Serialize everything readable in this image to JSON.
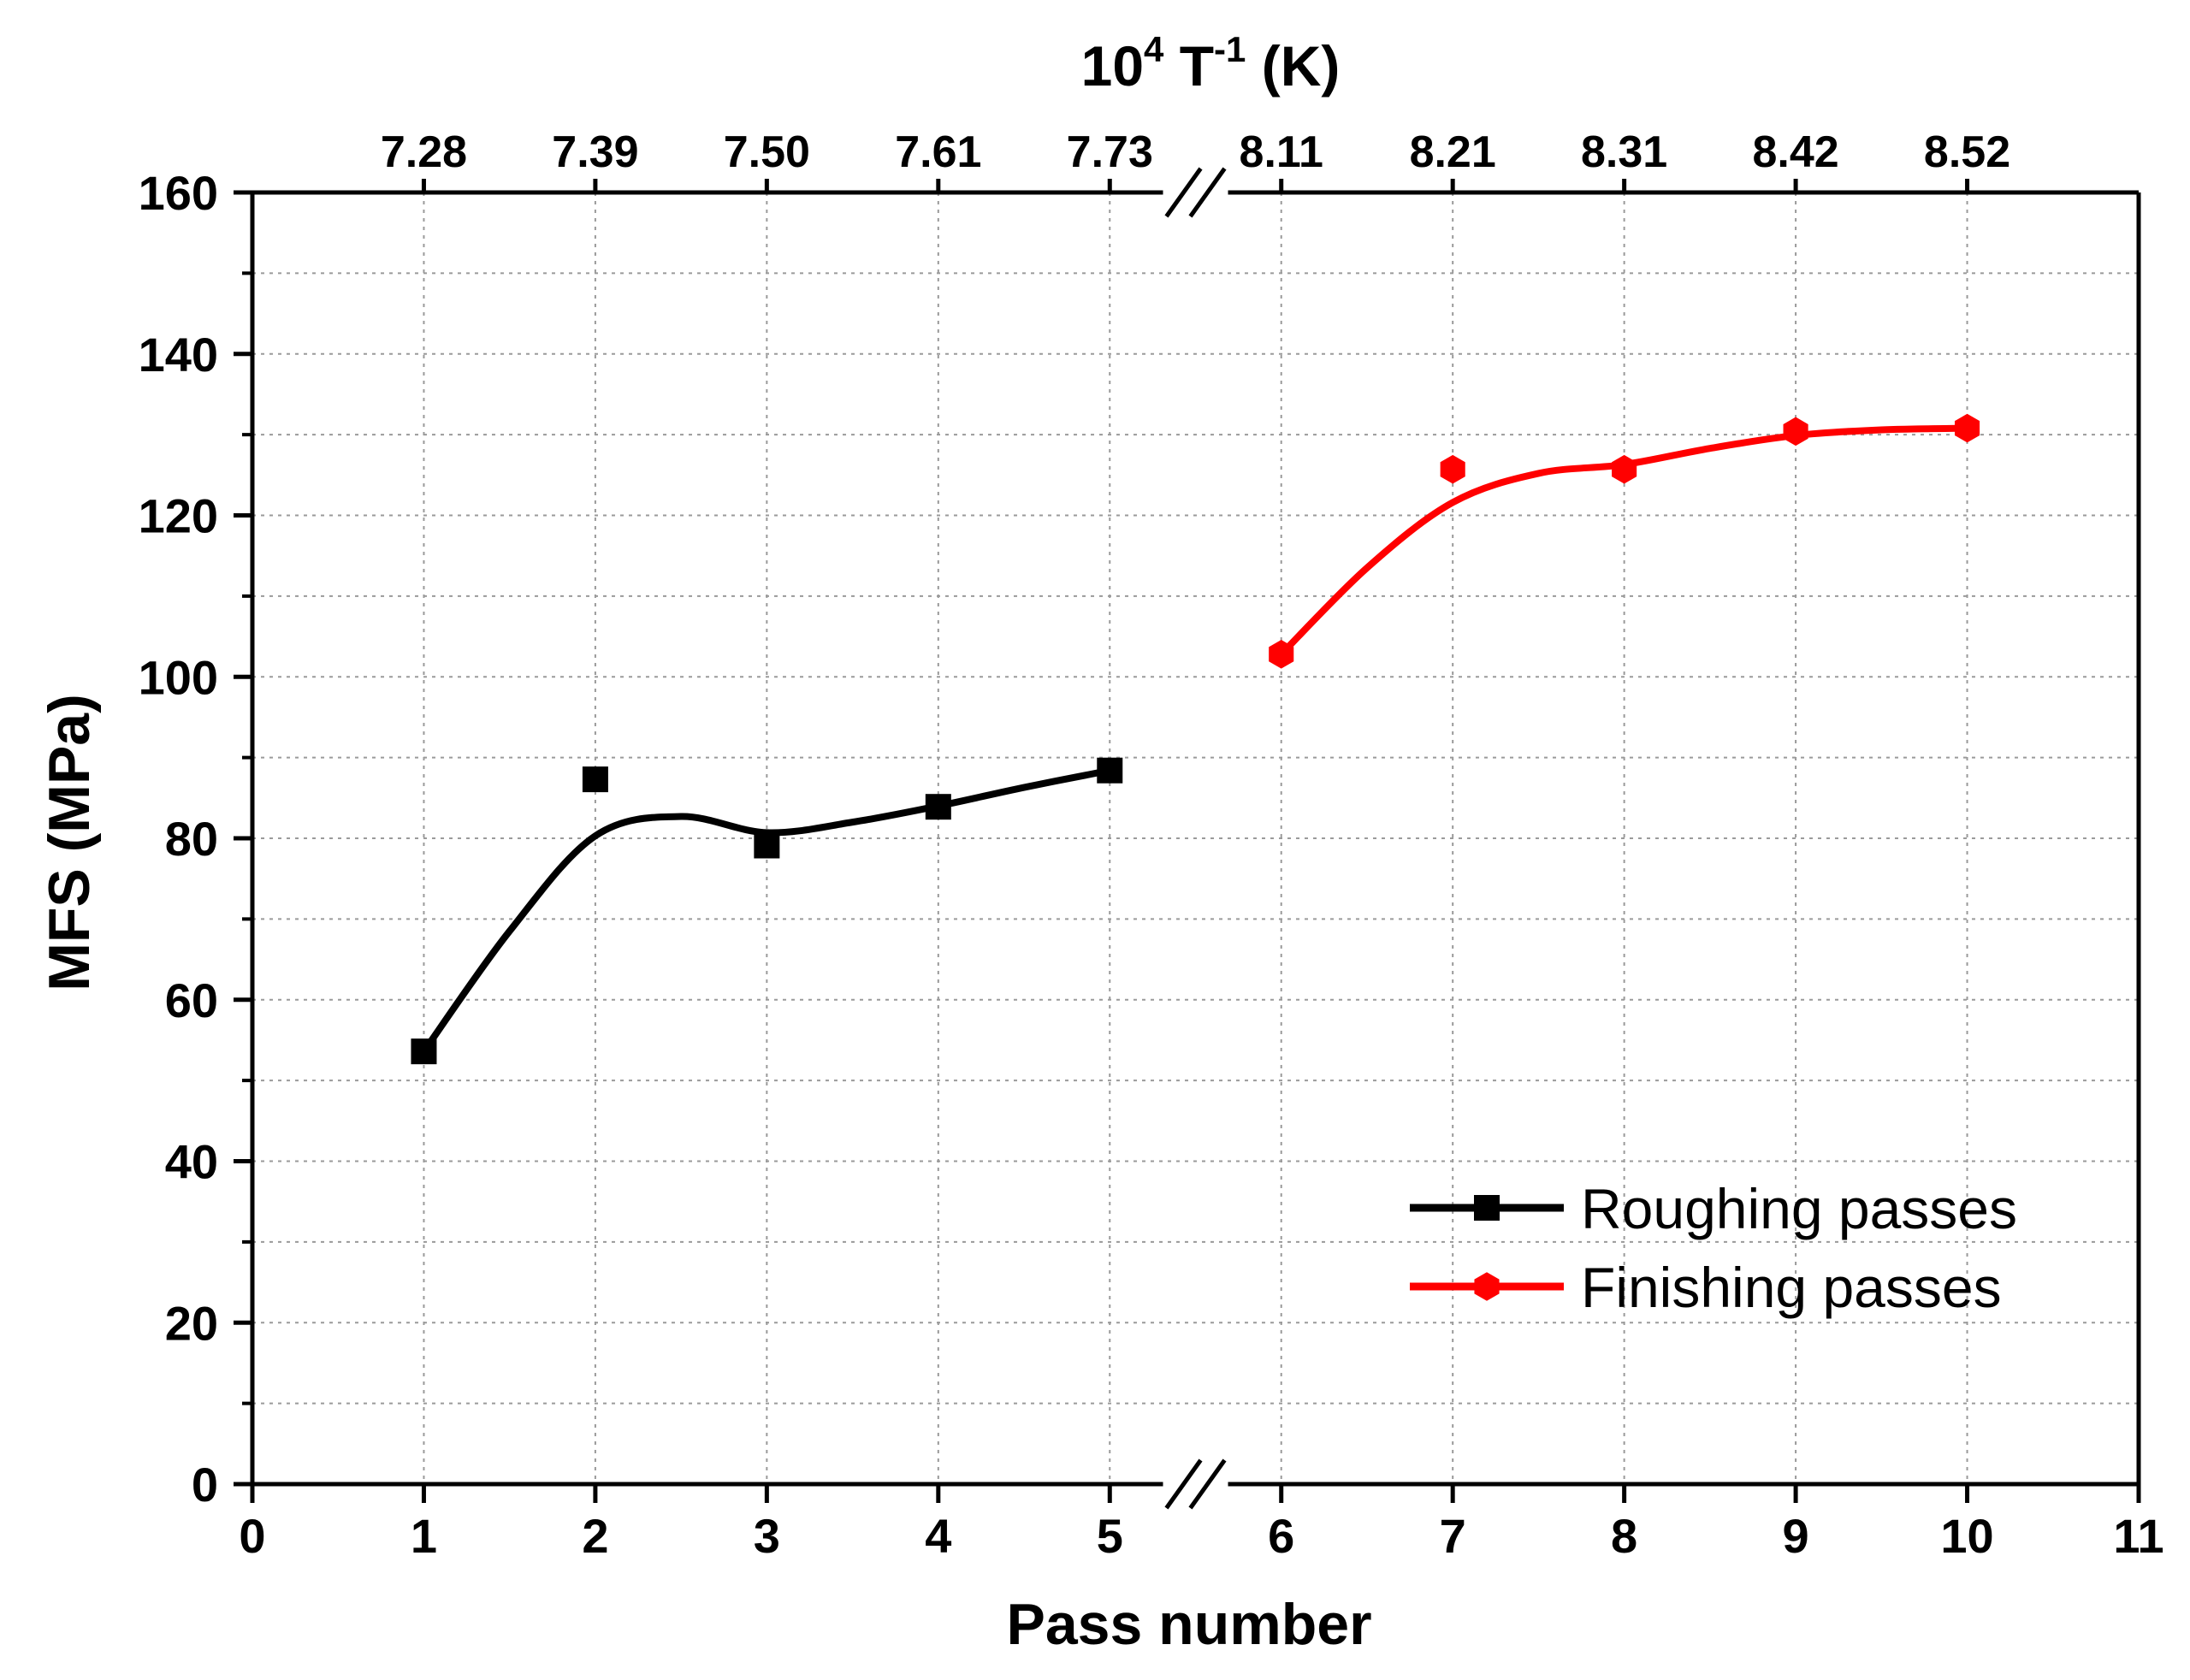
{
  "chart_data": {
    "type": "line",
    "title": "",
    "xlabel": "Pass number",
    "ylabel": "MFS (MPa)",
    "top_xlabel": "10",
    "top_xlabel_sup": "4",
    "top_xlabel_mid": " T",
    "top_xlabel_sup2": "-1",
    "top_xlabel_end": " (K)",
    "xlim": [
      0,
      11
    ],
    "ylim": [
      0,
      160
    ],
    "x_ticks": [
      "0",
      "1",
      "2",
      "3",
      "4",
      "5",
      "6",
      "7",
      "8",
      "9",
      "10",
      "11"
    ],
    "y_ticks": [
      "0",
      "20",
      "40",
      "60",
      "80",
      "100",
      "120",
      "140",
      "160"
    ],
    "top_ticks": [
      {
        "x": 1,
        "label": "7.28"
      },
      {
        "x": 2,
        "label": "7.39"
      },
      {
        "x": 3,
        "label": "7.50"
      },
      {
        "x": 4,
        "label": "7.61"
      },
      {
        "x": 5,
        "label": "7.73"
      },
      {
        "x": 6,
        "label": "8.11"
      },
      {
        "x": 7,
        "label": "8.21"
      },
      {
        "x": 8,
        "label": "8.31"
      },
      {
        "x": 9,
        "label": "8.42"
      },
      {
        "x": 10,
        "label": "8.52"
      }
    ],
    "axis_break_x": 5.5,
    "grid": true,
    "legend_position": "bottom-right",
    "series": [
      {
        "name": "Roughing passes",
        "color": "#000000",
        "marker": "square",
        "x": [
          1,
          2,
          3,
          4,
          5
        ],
        "values": [
          53.6,
          87.3,
          79.1,
          83.9,
          88.4
        ],
        "fit_x": [
          1,
          1.5,
          2,
          2.5,
          3,
          3.5,
          4,
          4.5,
          5
        ],
        "fit_y": [
          53.6,
          68.5,
          80.3,
          82.7,
          80.7,
          82.0,
          84.0,
          86.3,
          88.4
        ]
      },
      {
        "name": "Finishing passes",
        "color": "#ff0000",
        "marker": "hexagon",
        "x": [
          6,
          7,
          8,
          9,
          10
        ],
        "values": [
          102.8,
          125.7,
          125.7,
          130.4,
          130.8
        ],
        "fit_x": [
          6,
          6.5,
          7,
          7.5,
          8,
          8.5,
          9,
          9.5,
          10
        ],
        "fit_y": [
          102.8,
          113.5,
          121.6,
          125.2,
          126.3,
          128.3,
          129.9,
          130.6,
          130.8
        ]
      }
    ]
  }
}
